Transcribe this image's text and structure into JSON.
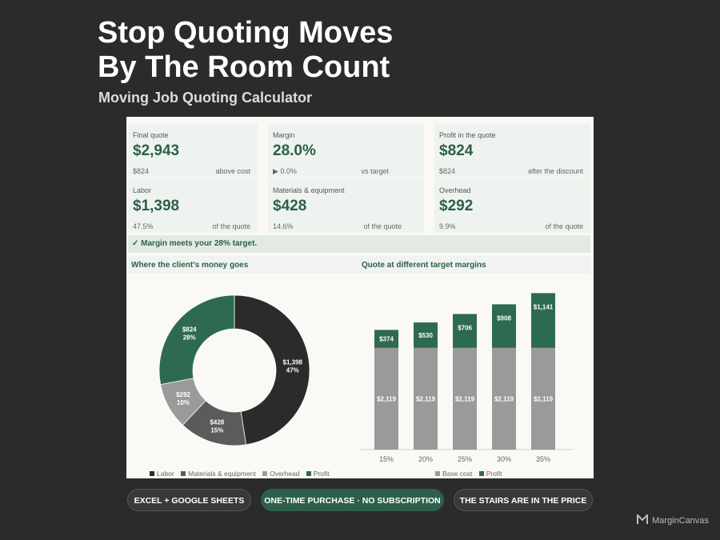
{
  "hero": {
    "title_line1": "Stop Quoting Moves",
    "title_line2": "By The Room Count",
    "subtitle": "Moving Job Quoting Calculator"
  },
  "kpis": [
    {
      "label": "Final quote",
      "value": "$2,943",
      "sub_left": "$824",
      "sub_right": "above cost"
    },
    {
      "label": "Margin",
      "value": "28.0%",
      "sub_left": "▶ 0.0%",
      "sub_right": "vs target"
    },
    {
      "label": "Profit in the quote",
      "value": "$824",
      "sub_left": "$824",
      "sub_right": "after the discount"
    },
    {
      "label": "Labor",
      "value": "$1,398",
      "sub_left": "47.5%",
      "sub_right": "of the quote"
    },
    {
      "label": "Materials & equipment",
      "value": "$428",
      "sub_left": "14.6%",
      "sub_right": "of the quote"
    },
    {
      "label": "Overhead",
      "value": "$292",
      "sub_left": "9.9%",
      "sub_right": "of the quote"
    }
  ],
  "banner": "✓ Margin meets your 28% target.",
  "sections": {
    "left_title": "Where the client's money goes",
    "right_title": "Quote at different target margins"
  },
  "chart_data": [
    {
      "type": "pie",
      "variant": "donut",
      "title": "Where the client's money goes",
      "categories": [
        "Labor",
        "Materials & equipment",
        "Overhead",
        "Profit"
      ],
      "values": [
        1398,
        428,
        292,
        824
      ],
      "value_labels": [
        "$1,398",
        "$428",
        "$292",
        "$824"
      ],
      "percent_labels": [
        "47%",
        "15%",
        "10%",
        "28%"
      ],
      "colors": [
        "#2b2b2b",
        "#5b5b5b",
        "#9a9a9a",
        "#2d6a4f"
      ],
      "legend": "bottom"
    },
    {
      "type": "bar",
      "stacked": true,
      "title": "Quote at different target margins",
      "categories": [
        "15%",
        "20%",
        "25%",
        "30%",
        "35%"
      ],
      "series": [
        {
          "name": "Base cost",
          "values": [
            2119,
            2119,
            2119,
            2119,
            2119
          ],
          "labels": [
            "$2,119",
            "$2,119",
            "$2,119",
            "$2,119",
            "$2,119"
          ],
          "color": "#9a9a9a"
        },
        {
          "name": "Profit",
          "values": [
            374,
            530,
            706,
            908,
            1141
          ],
          "labels": [
            "$374",
            "$530",
            "$706",
            "$908",
            "$1,141"
          ],
          "color": "#2d6a4f"
        }
      ],
      "legend": "bottom",
      "grid": false
    }
  ],
  "pills": [
    "EXCEL + GOOGLE SHEETS",
    "ONE-TIME PURCHASE · NO SUBSCRIPTION",
    "THE STAIRS ARE IN THE PRICE"
  ],
  "brand": "MarginCanvas"
}
